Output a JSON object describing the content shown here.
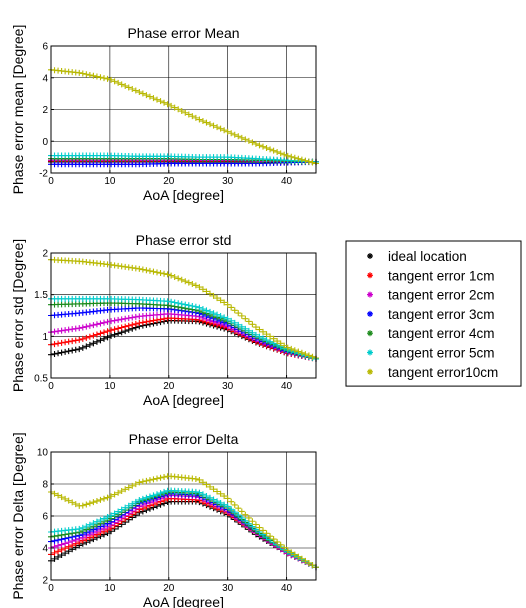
{
  "chart_data": [
    {
      "type": "scatter",
      "title": "Phase error  Mean",
      "xlabel": "AoA [degree]",
      "ylabel": "Phase  error mean [Degree]",
      "xlim": [
        0,
        45
      ],
      "ylim": [
        -2,
        6
      ],
      "xticks": [
        0,
        10,
        20,
        30,
        40
      ],
      "yticks": [
        -2,
        0,
        2,
        4,
        6
      ],
      "grid": true,
      "x": [
        0,
        5,
        10,
        15,
        20,
        25,
        30,
        35,
        40,
        45
      ],
      "series": [
        {
          "name": "ideal location",
          "color": "#000000",
          "values": [
            -1.3,
            -1.3,
            -1.3,
            -1.3,
            -1.3,
            -1.3,
            -1.3,
            -1.3,
            -1.3,
            -1.3
          ]
        },
        {
          "name": "tangent error 1cm",
          "color": "#ff0000",
          "values": [
            -1.25,
            -1.25,
            -1.25,
            -1.25,
            -1.25,
            -1.25,
            -1.25,
            -1.25,
            -1.3,
            -1.3
          ]
        },
        {
          "name": "tangent error 2cm",
          "color": "#cc00cc",
          "values": [
            -1.2,
            -1.2,
            -1.2,
            -1.2,
            -1.2,
            -1.2,
            -1.2,
            -1.25,
            -1.25,
            -1.3
          ]
        },
        {
          "name": "tangent error 3cm",
          "color": "#0000ff",
          "values": [
            -1.45,
            -1.45,
            -1.45,
            -1.45,
            -1.4,
            -1.4,
            -1.4,
            -1.4,
            -1.35,
            -1.3
          ]
        },
        {
          "name": "tangent error 4cm",
          "color": "#1a8a1a",
          "values": [
            -1.1,
            -1.1,
            -1.1,
            -1.1,
            -1.1,
            -1.15,
            -1.15,
            -1.2,
            -1.25,
            -1.3
          ]
        },
        {
          "name": "tangent error 5cm",
          "color": "#00cccc",
          "values": [
            -0.9,
            -0.9,
            -0.9,
            -0.95,
            -0.95,
            -1.0,
            -1.0,
            -1.1,
            -1.2,
            -1.3
          ]
        },
        {
          "name": "tangent error10cm",
          "color": "#b8b800",
          "values": [
            4.5,
            4.3,
            3.9,
            3.1,
            2.3,
            1.4,
            0.6,
            -0.2,
            -0.9,
            -1.4
          ]
        }
      ]
    },
    {
      "type": "scatter",
      "title": "Phase error  std",
      "xlabel": "AoA [degree]",
      "ylabel": "Phase  error std [Degree]",
      "xlim": [
        0,
        45
      ],
      "ylim": [
        0.5,
        2
      ],
      "xticks": [
        0,
        10,
        20,
        30,
        40
      ],
      "yticks": [
        0.5,
        1,
        1.5,
        2
      ],
      "grid": true,
      "x": [
        0,
        5,
        10,
        15,
        20,
        25,
        30,
        35,
        40,
        45
      ],
      "series": [
        {
          "name": "ideal location",
          "color": "#000000",
          "values": [
            0.78,
            0.85,
            1.0,
            1.12,
            1.19,
            1.18,
            1.08,
            0.92,
            0.8,
            0.73
          ]
        },
        {
          "name": "tangent error 1cm",
          "color": "#ff0000",
          "values": [
            0.9,
            0.96,
            1.07,
            1.16,
            1.22,
            1.2,
            1.1,
            0.93,
            0.8,
            0.73
          ]
        },
        {
          "name": "tangent error 2cm",
          "color": "#cc00cc",
          "values": [
            1.05,
            1.1,
            1.18,
            1.24,
            1.27,
            1.24,
            1.12,
            0.95,
            0.81,
            0.73
          ]
        },
        {
          "name": "tangent error 3cm",
          "color": "#0000ff",
          "values": [
            1.25,
            1.28,
            1.32,
            1.34,
            1.33,
            1.28,
            1.15,
            0.97,
            0.82,
            0.73
          ]
        },
        {
          "name": "tangent error 4cm",
          "color": "#1a8a1a",
          "values": [
            1.38,
            1.39,
            1.4,
            1.39,
            1.37,
            1.31,
            1.18,
            0.99,
            0.83,
            0.73
          ]
        },
        {
          "name": "tangent error 5cm",
          "color": "#00cccc",
          "values": [
            1.45,
            1.45,
            1.45,
            1.44,
            1.42,
            1.35,
            1.21,
            1.01,
            0.84,
            0.73
          ]
        },
        {
          "name": "tangent error10cm",
          "color": "#b8b800",
          "values": [
            1.92,
            1.9,
            1.86,
            1.81,
            1.74,
            1.6,
            1.38,
            1.1,
            0.87,
            0.74
          ]
        }
      ]
    },
    {
      "type": "scatter",
      "title": "Phase error  Delta",
      "xlabel": "AoA [degree]",
      "ylabel": "Phase  error Delta [Degree]",
      "xlim": [
        0,
        45
      ],
      "ylim": [
        2,
        10
      ],
      "xticks": [
        0,
        10,
        20,
        30,
        40
      ],
      "yticks": [
        2,
        4,
        6,
        8,
        10
      ],
      "grid": true,
      "x": [
        0,
        5,
        10,
        15,
        20,
        25,
        30,
        35,
        40,
        45
      ],
      "series": [
        {
          "name": "ideal location",
          "color": "#000000",
          "values": [
            3.2,
            4.2,
            5.0,
            6.2,
            6.9,
            6.9,
            6.1,
            4.8,
            3.7,
            2.8
          ]
        },
        {
          "name": "tangent error 1cm",
          "color": "#ff0000",
          "values": [
            3.6,
            4.4,
            5.2,
            6.4,
            7.1,
            7.0,
            6.2,
            4.9,
            3.7,
            2.8
          ]
        },
        {
          "name": "tangent error 2cm",
          "color": "#cc00cc",
          "values": [
            4.0,
            4.6,
            5.4,
            6.6,
            7.3,
            7.2,
            6.3,
            4.9,
            3.7,
            2.8
          ]
        },
        {
          "name": "tangent error 3cm",
          "color": "#0000ff",
          "values": [
            4.4,
            4.8,
            5.6,
            6.8,
            7.4,
            7.3,
            6.4,
            5.0,
            3.8,
            2.8
          ]
        },
        {
          "name": "tangent error 4cm",
          "color": "#1a8a1a",
          "values": [
            4.7,
            5.0,
            5.8,
            6.9,
            7.5,
            7.4,
            6.5,
            5.0,
            3.8,
            2.8
          ]
        },
        {
          "name": "tangent error 5cm",
          "color": "#00cccc",
          "values": [
            5.0,
            5.2,
            6.0,
            7.0,
            7.6,
            7.5,
            6.6,
            5.1,
            3.8,
            2.8
          ]
        },
        {
          "name": "tangent error10cm",
          "color": "#b8b800",
          "values": [
            7.5,
            6.6,
            7.2,
            8.1,
            8.5,
            8.3,
            7.1,
            5.4,
            3.9,
            2.8
          ]
        }
      ]
    }
  ],
  "legend": {
    "placement": "right",
    "entries": [
      {
        "label": "ideal location",
        "color": "#000000"
      },
      {
        "label": "tangent error 1cm",
        "color": "#ff0000"
      },
      {
        "label": "tangent error 2cm",
        "color": "#cc00cc"
      },
      {
        "label": "tangent error 3cm",
        "color": "#0000ff"
      },
      {
        "label": "tangent error 4cm",
        "color": "#1a8a1a"
      },
      {
        "label": "tangent error 5cm",
        "color": "#00cccc"
      },
      {
        "label": "tangent error10cm",
        "color": "#b8b800"
      }
    ]
  }
}
